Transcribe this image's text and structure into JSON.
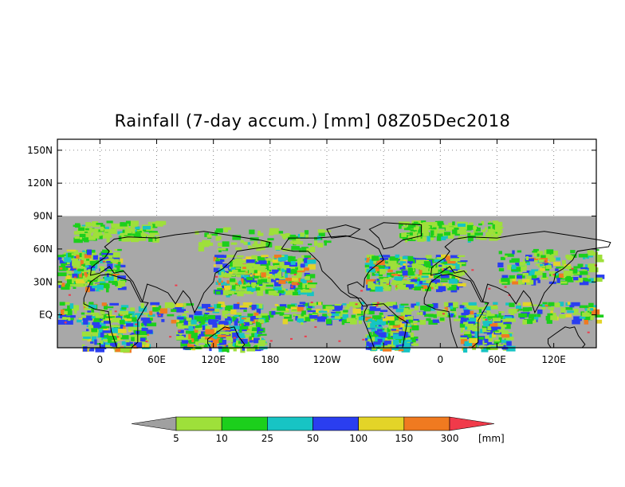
{
  "title": "Rainfall (7-day accum.) [mm] 08Z05Dec2018",
  "y_axis": {
    "ticks": [
      {
        "label": "150N",
        "lat": 150
      },
      {
        "label": "120N",
        "lat": 120
      },
      {
        "label": "90N",
        "lat": 90
      },
      {
        "label": "60N",
        "lat": 60
      },
      {
        "label": "30N",
        "lat": 30
      },
      {
        "label": "EQ",
        "lat": 0
      }
    ]
  },
  "x_axis": {
    "ticks": [
      {
        "label": "0",
        "lon": 0
      },
      {
        "label": "60E",
        "lon": 60
      },
      {
        "label": "120E",
        "lon": 120
      },
      {
        "label": "180",
        "lon": 180
      },
      {
        "label": "120W",
        "lon": 240
      },
      {
        "label": "60W",
        "lon": 300
      },
      {
        "label": "0",
        "lon": 360
      },
      {
        "label": "60E",
        "lon": 420
      },
      {
        "label": "120E",
        "lon": 480
      }
    ]
  },
  "map_extent": {
    "lon_min": -45,
    "lon_max": 525,
    "lat_min": -30,
    "lat_max": 160
  },
  "colorbar": {
    "unit": "[mm]",
    "bins": [
      {
        "label": "5",
        "color": "#a0a0a0"
      },
      {
        "label": "10",
        "color": "#9ee03a"
      },
      {
        "label": "25",
        "color": "#1ccf1c"
      },
      {
        "label": "50",
        "color": "#17c4c4"
      },
      {
        "label": "100",
        "color": "#2a3ef0"
      },
      {
        "label": "150",
        "color": "#e3d428"
      },
      {
        "label": "300",
        "color": "#f07a20"
      },
      {
        "label": "",
        "color": "#f03a4a"
      }
    ]
  },
  "colors": {
    "no_rain": "#a8a8a8",
    "coast": "#000000",
    "grid": "#8c8c8c"
  }
}
